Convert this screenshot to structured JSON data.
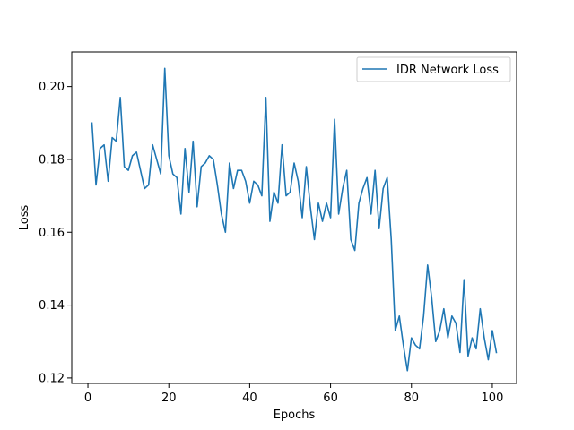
{
  "chart_data": {
    "type": "line",
    "title": "",
    "xlabel": "Epochs",
    "ylabel": "Loss",
    "xlim": [
      -4,
      106
    ],
    "ylim": [
      0.1185,
      0.2095
    ],
    "x_ticks": [
      0,
      20,
      40,
      60,
      80,
      100
    ],
    "x_tick_labels": [
      "0",
      "20",
      "40",
      "60",
      "80",
      "100"
    ],
    "y_ticks": [
      0.12,
      0.14,
      0.16,
      0.18,
      0.2
    ],
    "y_tick_labels": [
      "0.12",
      "0.14",
      "0.16",
      "0.18",
      "0.20"
    ],
    "grid": false,
    "legend": {
      "position": "upper-right"
    },
    "series": [
      {
        "name": "IDR Network Loss",
        "color": "#1f77b4",
        "x": [
          1,
          2,
          3,
          4,
          5,
          6,
          7,
          8,
          9,
          10,
          11,
          12,
          13,
          14,
          15,
          16,
          17,
          18,
          19,
          20,
          21,
          22,
          23,
          24,
          25,
          26,
          27,
          28,
          29,
          30,
          31,
          32,
          33,
          34,
          35,
          36,
          37,
          38,
          39,
          40,
          41,
          42,
          43,
          44,
          45,
          46,
          47,
          48,
          49,
          50,
          51,
          52,
          53,
          54,
          55,
          56,
          57,
          58,
          59,
          60,
          61,
          62,
          63,
          64,
          65,
          66,
          67,
          68,
          69,
          70,
          71,
          72,
          73,
          74,
          75,
          76,
          77,
          78,
          79,
          80,
          81,
          82,
          83,
          84,
          85,
          86,
          87,
          88,
          89,
          90,
          91,
          92,
          93,
          94,
          95,
          96,
          97,
          98,
          99,
          100,
          101
        ],
        "values": [
          0.19,
          0.173,
          0.183,
          0.184,
          0.174,
          0.186,
          0.185,
          0.197,
          0.178,
          0.177,
          0.181,
          0.182,
          0.177,
          0.172,
          0.173,
          0.184,
          0.18,
          0.176,
          0.205,
          0.181,
          0.176,
          0.175,
          0.165,
          0.183,
          0.171,
          0.185,
          0.167,
          0.178,
          0.179,
          0.181,
          0.18,
          0.173,
          0.165,
          0.16,
          0.179,
          0.172,
          0.177,
          0.177,
          0.174,
          0.168,
          0.174,
          0.173,
          0.17,
          0.197,
          0.163,
          0.171,
          0.168,
          0.184,
          0.17,
          0.171,
          0.179,
          0.174,
          0.164,
          0.178,
          0.167,
          0.158,
          0.168,
          0.163,
          0.168,
          0.164,
          0.191,
          0.165,
          0.172,
          0.177,
          0.158,
          0.155,
          0.168,
          0.172,
          0.175,
          0.165,
          0.177,
          0.161,
          0.172,
          0.175,
          0.158,
          0.133,
          0.137,
          0.129,
          0.122,
          0.131,
          0.129,
          0.128,
          0.137,
          0.151,
          0.142,
          0.13,
          0.133,
          0.139,
          0.131,
          0.137,
          0.135,
          0.127,
          0.147,
          0.126,
          0.131,
          0.128,
          0.139,
          0.131,
          0.125,
          0.133,
          0.127
        ]
      }
    ]
  }
}
